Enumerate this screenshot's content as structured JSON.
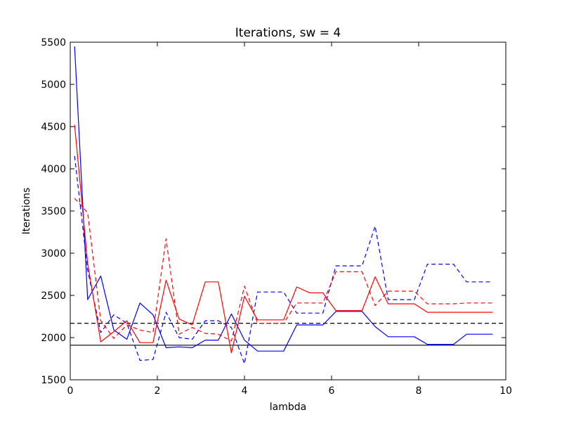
{
  "chart_data": {
    "type": "line",
    "title": "Iterations, sw = 4",
    "xlabel": "lambda",
    "ylabel": "Iterations",
    "xlim": [
      0,
      10
    ],
    "ylim": [
      1500,
      5500
    ],
    "xticks": [
      0,
      2,
      4,
      6,
      8,
      10
    ],
    "yticks": [
      1500,
      2000,
      2500,
      3000,
      3500,
      4000,
      4500,
      5000,
      5500
    ],
    "grid": false,
    "x": [
      0.1,
      0.4,
      0.7,
      1.0,
      1.3,
      1.6,
      1.9,
      2.2,
      2.5,
      2.8,
      3.1,
      3.4,
      3.7,
      4.0,
      4.3,
      4.6,
      4.9,
      5.2,
      5.5,
      5.8,
      6.1,
      6.4,
      6.7,
      7.0,
      7.3,
      7.6,
      7.9,
      8.2,
      8.5,
      8.8,
      9.1,
      9.4,
      9.7
    ],
    "series": [
      {
        "color": "#0000ff",
        "style": "solid",
        "values": [
          5450,
          2450,
          2730,
          2090,
          1980,
          2410,
          2270,
          1880,
          1890,
          1880,
          1970,
          1970,
          2280,
          1970,
          1840,
          1840,
          1840,
          2150,
          2150,
          2150,
          2310,
          2310,
          2310,
          2130,
          2010,
          2010,
          2010,
          1920,
          1920,
          1920,
          2040,
          2040,
          2040
        ]
      },
      {
        "color": "#0000ff",
        "style": "dashed",
        "values": [
          4150,
          2800,
          2060,
          2270,
          2170,
          1730,
          1740,
          2300,
          2000,
          1980,
          2200,
          2200,
          2120,
          1690,
          2540,
          2540,
          2540,
          2290,
          2290,
          2290,
          2850,
          2850,
          2850,
          3320,
          2450,
          2450,
          2450,
          2870,
          2870,
          2870,
          2660,
          2660,
          2660
        ]
      },
      {
        "color": "#ff0000",
        "style": "solid",
        "values": [
          4520,
          2880,
          1950,
          2070,
          2200,
          1940,
          1940,
          2680,
          2220,
          2150,
          2660,
          2660,
          1820,
          2490,
          2210,
          2210,
          2210,
          2600,
          2530,
          2530,
          2320,
          2320,
          2320,
          2720,
          2400,
          2400,
          2400,
          2300,
          2300,
          2300,
          2300,
          2300,
          2300
        ]
      },
      {
        "color": "#ff0000",
        "style": "dashed",
        "values": [
          3650,
          3480,
          2200,
          1990,
          2150,
          2090,
          2060,
          3170,
          2040,
          2120,
          2050,
          2040,
          1960,
          2610,
          2170,
          2170,
          2170,
          2410,
          2410,
          2410,
          2780,
          2780,
          2780,
          2380,
          2550,
          2550,
          2550,
          2400,
          2400,
          2400,
          2410,
          2410,
          2410
        ]
      }
    ],
    "hlines": [
      {
        "y": 2170,
        "color": "#000000",
        "style": "dashed"
      },
      {
        "y": 1910,
        "color": "#000000",
        "style": "solid"
      }
    ]
  }
}
